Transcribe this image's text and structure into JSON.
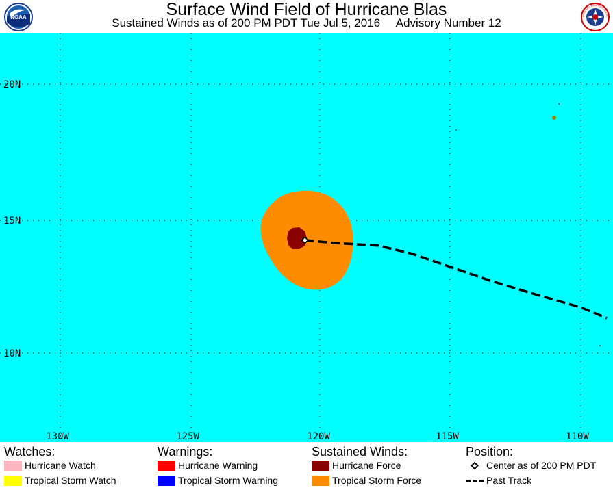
{
  "header": {
    "title": "Surface Wind Field of Hurricane Blas",
    "subtitle": "Sustained Winds as of 200 PM PDT Tue Jul 5, 2016     Advisory Number 12",
    "logo_left": "NOAA",
    "logo_right": "NATIONAL WEATHER SERVICE"
  },
  "map": {
    "ocean_color": "#00ffff",
    "latitude_labels": [
      "20N",
      "15N",
      "10N"
    ],
    "longitude_labels": [
      "130W",
      "125W",
      "120W",
      "115W",
      "110W"
    ],
    "tropical_storm_force_color": "#ff8c00",
    "hurricane_force_color": "#8b0000",
    "storm_center": {
      "lon": -120.6,
      "lat": 14.2
    },
    "past_track": [
      {
        "lon": -120.6,
        "lat": 14.2
      },
      {
        "lon": -119.5,
        "lat": 14.1
      },
      {
        "lon": -117.8,
        "lat": 14.0
      },
      {
        "lon": -116.5,
        "lat": 13.7
      },
      {
        "lon": -115.0,
        "lat": 13.2
      },
      {
        "lon": -113.5,
        "lat": 12.7
      },
      {
        "lon": -111.8,
        "lat": 12.2
      },
      {
        "lon": -110.0,
        "lat": 11.7
      },
      {
        "lon": -109.0,
        "lat": 11.3
      }
    ]
  },
  "legend": {
    "watches": {
      "heading": "Watches:",
      "items": [
        {
          "label": "Hurricane Watch",
          "color": "#ffb6c1"
        },
        {
          "label": "Tropical Storm Watch",
          "color": "#ffff00"
        }
      ]
    },
    "warnings": {
      "heading": "Warnings:",
      "items": [
        {
          "label": "Hurricane Warning",
          "color": "#ff0000"
        },
        {
          "label": "Tropical Storm Warning",
          "color": "#0000ff"
        }
      ]
    },
    "winds": {
      "heading": "Sustained Winds:",
      "items": [
        {
          "label": "Hurricane Force",
          "color": "#8b0000"
        },
        {
          "label": "Tropical Storm Force",
          "color": "#ff8c00"
        }
      ]
    },
    "position": {
      "heading": "Position:",
      "items": [
        {
          "label": "Center as of 200 PM PDT",
          "icon": "diamond-icon"
        },
        {
          "label": "Past Track",
          "icon": "dashed-line-icon"
        }
      ]
    }
  }
}
